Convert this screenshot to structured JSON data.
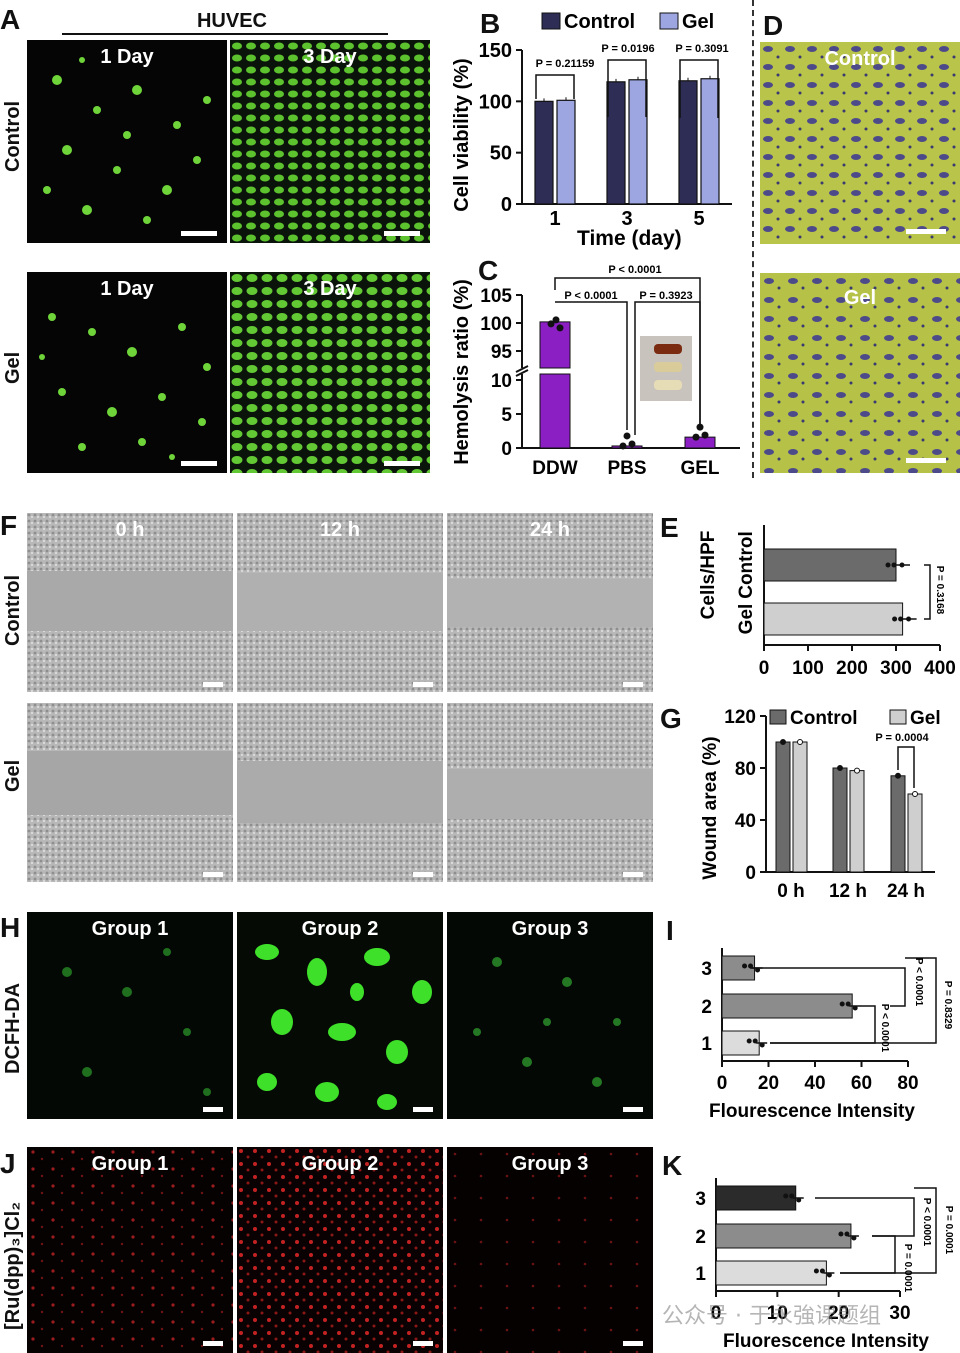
{
  "panels": {
    "A": {
      "letter": "A",
      "header": "HUVEC",
      "rows": [
        "Control",
        "Gel"
      ],
      "cols": [
        "1 Day",
        "3 Day"
      ]
    },
    "D": {
      "letter": "D",
      "tiles": [
        "Control",
        "Gel"
      ]
    },
    "F": {
      "letter": "F",
      "rows": [
        "Control",
        "Gel"
      ],
      "cols": [
        "0 h",
        "12 h",
        "24 h"
      ]
    },
    "H": {
      "letter": "H",
      "row": "DCFH-DA",
      "cols": [
        "Group 1",
        "Group 2",
        "Group 3"
      ]
    },
    "J": {
      "letter": "J",
      "row": "[Ru(dpp)₃]Cl₂",
      "cols": [
        "Group 1",
        "Group 2",
        "Group 3"
      ]
    }
  },
  "watermark": "公众号 · 于永強课题组",
  "colors": {
    "control_dark": "#2d2d55",
    "gel_light": "#9da6e0",
    "purple": "#8b1fc4",
    "gray_dark": "#6b6b6b",
    "gray_light": "#cfcfcf",
    "black_bar": "#2b2b2b",
    "mid_gray": "#8c8c8c",
    "light_gray": "#dcdcdc"
  },
  "chart_data": [
    {
      "id": "B",
      "letter": "B",
      "type": "bar",
      "categories": [
        "1",
        "3",
        "5"
      ],
      "series": [
        {
          "name": "Control",
          "values": [
            100,
            119,
            120
          ]
        },
        {
          "name": "Gel",
          "values": [
            101,
            121,
            122
          ]
        }
      ],
      "xlabel": "Time (day)",
      "ylabel": "Cell viability (%)",
      "ylim": [
        0,
        150
      ],
      "yticks": [
        "0",
        "50",
        "100",
        "150"
      ],
      "annotations": [
        "P = 0.21159",
        "P = 0.0196",
        "P = 0.3091"
      ],
      "legend": "top"
    },
    {
      "id": "C",
      "letter": "C",
      "type": "bar",
      "categories": [
        "DDW",
        "PBS",
        "GEL"
      ],
      "values": [
        100.2,
        0.3,
        1.6
      ],
      "ylabel": "Hemolysis ratio (%)",
      "yticks": [
        "0",
        "5",
        "10",
        "95",
        "100",
        "105"
      ],
      "axis_break": [
        10,
        92
      ],
      "annotations": [
        "P < 0.0001",
        "P < 0.0001",
        "P = 0.3923"
      ]
    },
    {
      "id": "E",
      "letter": "E",
      "type": "bar",
      "orientation": "horizontal",
      "categories": [
        "Control",
        "Gel"
      ],
      "values": [
        300,
        315
      ],
      "ylabel": "Cells/HPF",
      "xlim": [
        0,
        400
      ],
      "xticks": [
        "0",
        "100",
        "200",
        "300",
        "400"
      ],
      "annotations": [
        "P = 0.3168"
      ]
    },
    {
      "id": "G",
      "letter": "G",
      "type": "bar",
      "categories": [
        "0 h",
        "12 h",
        "24 h"
      ],
      "series": [
        {
          "name": "Control",
          "values": [
            100,
            80,
            74
          ]
        },
        {
          "name": "Gel",
          "values": [
            100,
            78,
            60
          ]
        }
      ],
      "ylabel": "Wound area (%)",
      "ylim": [
        0,
        120
      ],
      "yticks": [
        "0",
        "40",
        "80",
        "120"
      ],
      "annotations": [
        "P = 0.0004"
      ],
      "legend": "top"
    },
    {
      "id": "I",
      "letter": "I",
      "type": "bar",
      "orientation": "horizontal",
      "categories": [
        "3",
        "2",
        "1"
      ],
      "values": [
        14,
        56,
        16
      ],
      "xlabel": "Flourescence Intensity",
      "xlim": [
        0,
        80
      ],
      "xticks": [
        "0",
        "20",
        "40",
        "60",
        "80"
      ],
      "annotations": [
        "P < 0.0001",
        "P < 0.0001",
        "P = 0.8329"
      ]
    },
    {
      "id": "K",
      "letter": "K",
      "type": "bar",
      "orientation": "horizontal",
      "categories": [
        "3",
        "2",
        "1"
      ],
      "values": [
        13,
        22,
        18
      ],
      "xlabel": "Fluorescence Intensity",
      "xlim": [
        0,
        30
      ],
      "xticks": [
        "0",
        "10",
        "20",
        "30"
      ],
      "annotations": [
        "P < 0.0001",
        "P = 0.0001",
        "P = 0.0001"
      ]
    }
  ]
}
